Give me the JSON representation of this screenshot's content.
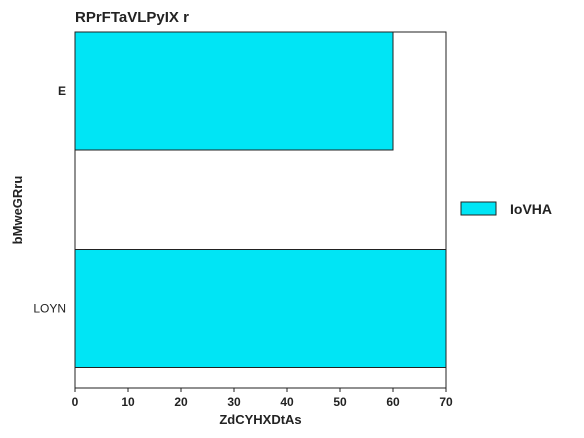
{
  "chart_data": {
    "type": "bar",
    "orientation": "horizontal",
    "title": "RPrFTaVLPyIX r",
    "xlabel": "ZdCYHXDtAs",
    "ylabel": "bMweGRru",
    "categories": [
      "E",
      "LOYN"
    ],
    "series": [
      {
        "name": "IoVHA",
        "values": [
          60,
          70
        ],
        "color": "#00e5f5"
      }
    ],
    "xlim": [
      0,
      70
    ],
    "xticks": [
      0,
      10,
      20,
      30,
      40,
      50,
      60,
      70
    ],
    "grid": false,
    "legend_position": "right"
  }
}
